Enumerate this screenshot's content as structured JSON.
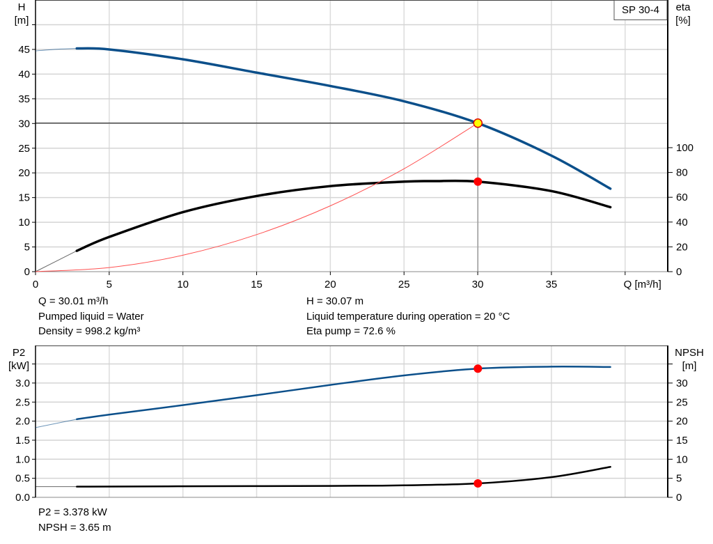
{
  "chart_data": [
    {
      "type": "line",
      "legend_box": "SP 30-4",
      "xlabel": "Q [m³/h]",
      "ylabel": [
        "H",
        "[m]"
      ],
      "y2label": [
        "eta",
        "[%]"
      ],
      "xlim": [
        0,
        43
      ],
      "ylim": [
        0,
        55
      ],
      "y2lim": [
        0,
        120
      ],
      "xticks": [
        0,
        5,
        10,
        15,
        20,
        25,
        30,
        35
      ],
      "yticks": [
        0,
        5,
        10,
        15,
        20,
        25,
        30,
        35,
        40,
        45
      ],
      "y2ticks": [
        0,
        20,
        40,
        60,
        80,
        100
      ],
      "grid": true,
      "series": [
        {
          "id": "H",
          "axis": "left",
          "color": "#0b4f8a",
          "x": [
            0,
            1.5,
            2.8,
            5,
            10,
            15,
            20,
            25,
            30,
            35,
            39
          ],
          "y": [
            44.7,
            45.05,
            45.2,
            45.0,
            43.0,
            40.3,
            37.6,
            34.5,
            30.07,
            23.5,
            16.8
          ],
          "thin_until": 2.8
        },
        {
          "id": "eta",
          "axis": "right",
          "color": "#000000",
          "x": [
            0,
            2.8,
            5,
            10,
            15,
            20,
            25,
            27,
            30,
            35,
            39
          ],
          "y": [
            0,
            16.8,
            28,
            48,
            61,
            69,
            72.6,
            73.0,
            72.6,
            65,
            52
          ],
          "thin_until": 2.8
        },
        {
          "id": "system",
          "axis": "left",
          "color": "#ff5050",
          "x": [
            0,
            5,
            10,
            15,
            20,
            25,
            30
          ],
          "y": [
            0,
            0.83,
            3.33,
            7.5,
            13.33,
            20.83,
            30.07
          ]
        }
      ],
      "duty_point": {
        "Q": 30.01,
        "H": 30.07,
        "eta": 72.6
      },
      "readout": {
        "q": "Q = 30.01 m³/h",
        "liquid": "Pumped liquid = Water",
        "density": "Density = 998.2 kg/m³",
        "h": "H = 30.07 m",
        "temp": "Liquid temperature during operation = 20 °C",
        "eta": "Eta pump = 72.6 %"
      }
    },
    {
      "type": "line",
      "ylabel": [
        "P2",
        "[kW]"
      ],
      "y2label": [
        "NPSH",
        "[m]"
      ],
      "xlim": [
        0,
        43
      ],
      "ylim": [
        0,
        4.0
      ],
      "y2lim": [
        0,
        40
      ],
      "yticks": [
        "0.0",
        "0.5",
        "1.0",
        "1.5",
        "2.0",
        "2.5",
        "3.0"
      ],
      "y2ticks": [
        0,
        5,
        10,
        15,
        20,
        25,
        30
      ],
      "grid": true,
      "series": [
        {
          "id": "P2",
          "axis": "left",
          "color": "#0b4f8a",
          "x": [
            0,
            2.8,
            5,
            10,
            15,
            20,
            25,
            30,
            35,
            39
          ],
          "y": [
            1.83,
            2.05,
            2.17,
            2.42,
            2.68,
            2.95,
            3.2,
            3.378,
            3.43,
            3.42
          ],
          "thin_until": 2.8
        },
        {
          "id": "NPSH",
          "axis": "right",
          "color": "#000000",
          "x": [
            0,
            2.8,
            10,
            20,
            25,
            30,
            35,
            39
          ],
          "y": [
            2.8,
            2.8,
            2.9,
            3.0,
            3.15,
            3.65,
            5.3,
            8.0
          ],
          "thin_until": 2.8
        }
      ],
      "duty_point": {
        "Q": 30.01,
        "P2": 3.378,
        "NPSH": 3.65
      },
      "readout": {
        "p2": "P2 = 3.378 kW",
        "npsh": "NPSH = 3.65 m"
      }
    }
  ]
}
